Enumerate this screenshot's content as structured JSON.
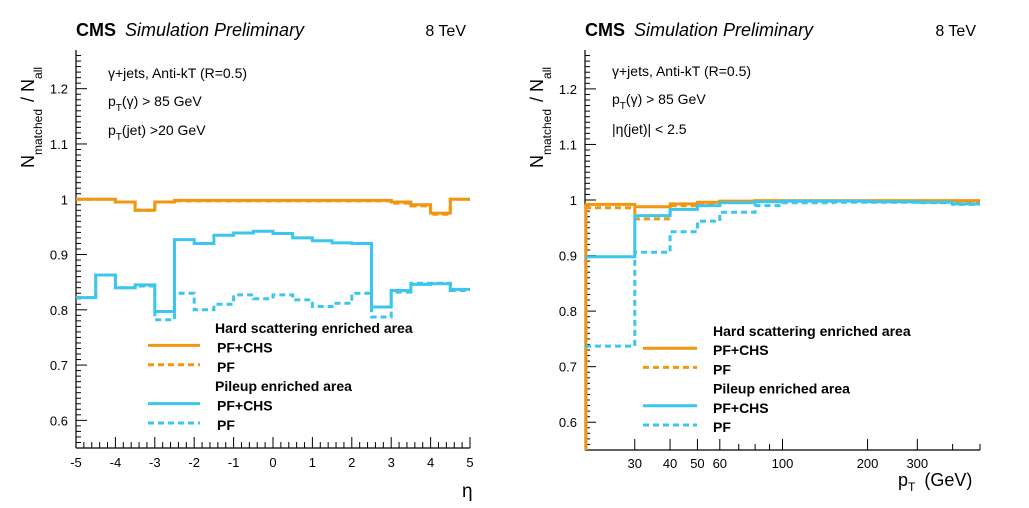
{
  "colors": {
    "hard": "#f0960f",
    "pileup": "#3cc6ee"
  },
  "chart_data": [
    {
      "type": "line",
      "drawstyle": "step",
      "header": {
        "experiment": "CMS",
        "label": "Simulation Preliminary",
        "energy": "8 TeV"
      },
      "xlabel": "η",
      "ylabel": {
        "main": "N",
        "sub1": "matched",
        "sep": "/ N",
        "sub2": "all"
      },
      "xlim": [
        -5,
        5
      ],
      "ylim": [
        0.55,
        1.27
      ],
      "x_scale": "linear",
      "x_ticks": [
        -5,
        -4,
        -3,
        -2,
        -1,
        0,
        1,
        2,
        3,
        4,
        5
      ],
      "x_tick_labels": [
        "-5",
        "-4",
        "-3",
        "-2",
        "-1",
        "0",
        "1",
        "2",
        "3",
        "4",
        "5"
      ],
      "y_ticks": [
        0.6,
        0.7,
        0.8,
        0.9,
        1.0,
        1.1,
        1.2
      ],
      "y_tick_labels": [
        "0.6",
        "0.7",
        "0.8",
        "0.9",
        "1",
        "1.1",
        "1.2"
      ],
      "annotations": [
        {
          "pre": "γ+jets, Anti-kT (R=0.5)"
        },
        {
          "pre": "p",
          "sub": "T",
          "post": "(γ) > 85 GeV"
        },
        {
          "pre": "p",
          "sub": "T",
          "post": "(jet) >20 GeV"
        }
      ],
      "legend": {
        "position": "bottom-center",
        "entries": [
          {
            "kind": "header",
            "text": "Hard scattering enriched area"
          },
          {
            "kind": "line",
            "text": "PF+CHS",
            "color": "hard",
            "dash": "solid"
          },
          {
            "kind": "line",
            "text": "PF",
            "color": "hard",
            "dash": "dashed"
          },
          {
            "kind": "header",
            "text": "Pileup enriched area"
          },
          {
            "kind": "line",
            "text": "PF+CHS",
            "color": "pileup",
            "dash": "solid"
          },
          {
            "kind": "line",
            "text": "PF",
            "color": "pileup",
            "dash": "dashed"
          }
        ]
      },
      "bin_edges": [
        -5,
        -4.5,
        -4,
        -3.5,
        -3,
        -2.5,
        -2,
        -1.5,
        -1,
        -0.5,
        0,
        0.5,
        1,
        1.5,
        2,
        2.5,
        3,
        3.5,
        4,
        4.5,
        5
      ],
      "series": [
        {
          "name": "Hard scattering PF+CHS",
          "color": "hard",
          "dash": "solid",
          "values": [
            1.0,
            1.0,
            0.995,
            0.98,
            0.995,
            0.998,
            0.998,
            0.998,
            0.998,
            0.998,
            0.998,
            0.998,
            0.998,
            0.998,
            0.998,
            0.998,
            0.995,
            0.99,
            0.975,
            1.0
          ]
        },
        {
          "name": "Hard scattering PF",
          "color": "hard",
          "dash": "dashed",
          "values": [
            1.0,
            1.0,
            0.995,
            0.98,
            0.995,
            0.997,
            0.997,
            0.997,
            0.997,
            0.997,
            0.997,
            0.997,
            0.997,
            0.997,
            0.997,
            0.997,
            0.993,
            0.988,
            0.973,
            1.0
          ]
        },
        {
          "name": "Pileup PF+CHS",
          "color": "pileup",
          "dash": "solid",
          "values": [
            0.822,
            0.863,
            0.84,
            0.845,
            0.797,
            0.927,
            0.92,
            0.935,
            0.939,
            0.942,
            0.938,
            0.93,
            0.925,
            0.921,
            0.92,
            0.805,
            0.835,
            0.846,
            0.847,
            0.837
          ]
        },
        {
          "name": "Pileup PF",
          "color": "pileup",
          "dash": "dashed",
          "values": [
            0.822,
            0.863,
            0.84,
            0.843,
            0.782,
            0.83,
            0.8,
            0.81,
            0.827,
            0.82,
            0.827,
            0.818,
            0.806,
            0.812,
            0.83,
            0.787,
            0.832,
            0.848,
            0.848,
            0.835
          ]
        }
      ]
    },
    {
      "type": "line",
      "drawstyle": "step",
      "header": {
        "experiment": "CMS",
        "label": "Simulation Preliminary",
        "energy": "8 TeV"
      },
      "xlabel": "(GeV)",
      "xlabel_var": {
        "pre": "p",
        "sub": "T"
      },
      "ylabel": {
        "main": "N",
        "sub1": "matched",
        "sep": "/ N",
        "sub2": "all"
      },
      "xlim": [
        20,
        500
      ],
      "ylim": [
        0.55,
        1.27
      ],
      "x_scale": "log",
      "x_ticks": [
        30,
        40,
        50,
        60,
        100,
        200,
        300
      ],
      "x_tick_labels": [
        "30",
        "40",
        "50",
        "60",
        "100",
        "200",
        "300"
      ],
      "y_ticks": [
        0.6,
        0.7,
        0.8,
        0.9,
        1.0,
        1.1,
        1.2
      ],
      "y_tick_labels": [
        "0.6",
        "0.7",
        "0.8",
        "0.9",
        "1",
        "1.1",
        "1.2"
      ],
      "annotations": [
        {
          "pre": "γ+jets, Anti-kT (R=0.5)"
        },
        {
          "pre": "p",
          "sub": "T",
          "post": "(γ) > 85 GeV"
        },
        {
          "pre": "|η(jet)| < 2.5"
        }
      ],
      "legend": {
        "position": "bottom-center",
        "entries": [
          {
            "kind": "header",
            "text": "Hard scattering enriched area"
          },
          {
            "kind": "line",
            "text": "PF+CHS",
            "color": "hard",
            "dash": "solid"
          },
          {
            "kind": "line",
            "text": "PF",
            "color": "hard",
            "dash": "dashed"
          },
          {
            "kind": "header",
            "text": "Pileup enriched area"
          },
          {
            "kind": "line",
            "text": "PF+CHS",
            "color": "pileup",
            "dash": "solid"
          },
          {
            "kind": "line",
            "text": "PF",
            "color": "pileup",
            "dash": "dashed"
          }
        ]
      },
      "bin_edges": [
        20,
        30,
        40,
        50,
        60,
        80,
        100,
        150,
        200,
        300,
        400,
        500
      ],
      "series": [
        {
          "name": "Hard scattering PF+CHS",
          "color": "hard",
          "dash": "solid",
          "values": [
            0.992,
            0.988,
            0.993,
            0.996,
            0.998,
            0.999,
            0.999,
            0.999,
            0.999,
            0.999,
            0.999
          ]
        },
        {
          "name": "Hard scattering PF",
          "color": "hard",
          "dash": "dashed",
          "values": [
            0.986,
            0.966,
            0.99,
            0.994,
            0.997,
            0.998,
            0.998,
            0.998,
            0.998,
            0.998,
            0.998
          ]
        },
        {
          "name": "Pileup PF+CHS",
          "color": "pileup",
          "dash": "solid",
          "values": [
            0.898,
            0.972,
            0.983,
            0.99,
            0.995,
            0.997,
            0.998,
            0.998,
            0.997,
            0.996,
            0.993
          ]
        },
        {
          "name": "Pileup PF",
          "color": "pileup",
          "dash": "dashed",
          "values": [
            0.737,
            0.906,
            0.943,
            0.962,
            0.978,
            0.99,
            0.995,
            0.996,
            0.996,
            0.995,
            0.992
          ]
        }
      ]
    }
  ]
}
